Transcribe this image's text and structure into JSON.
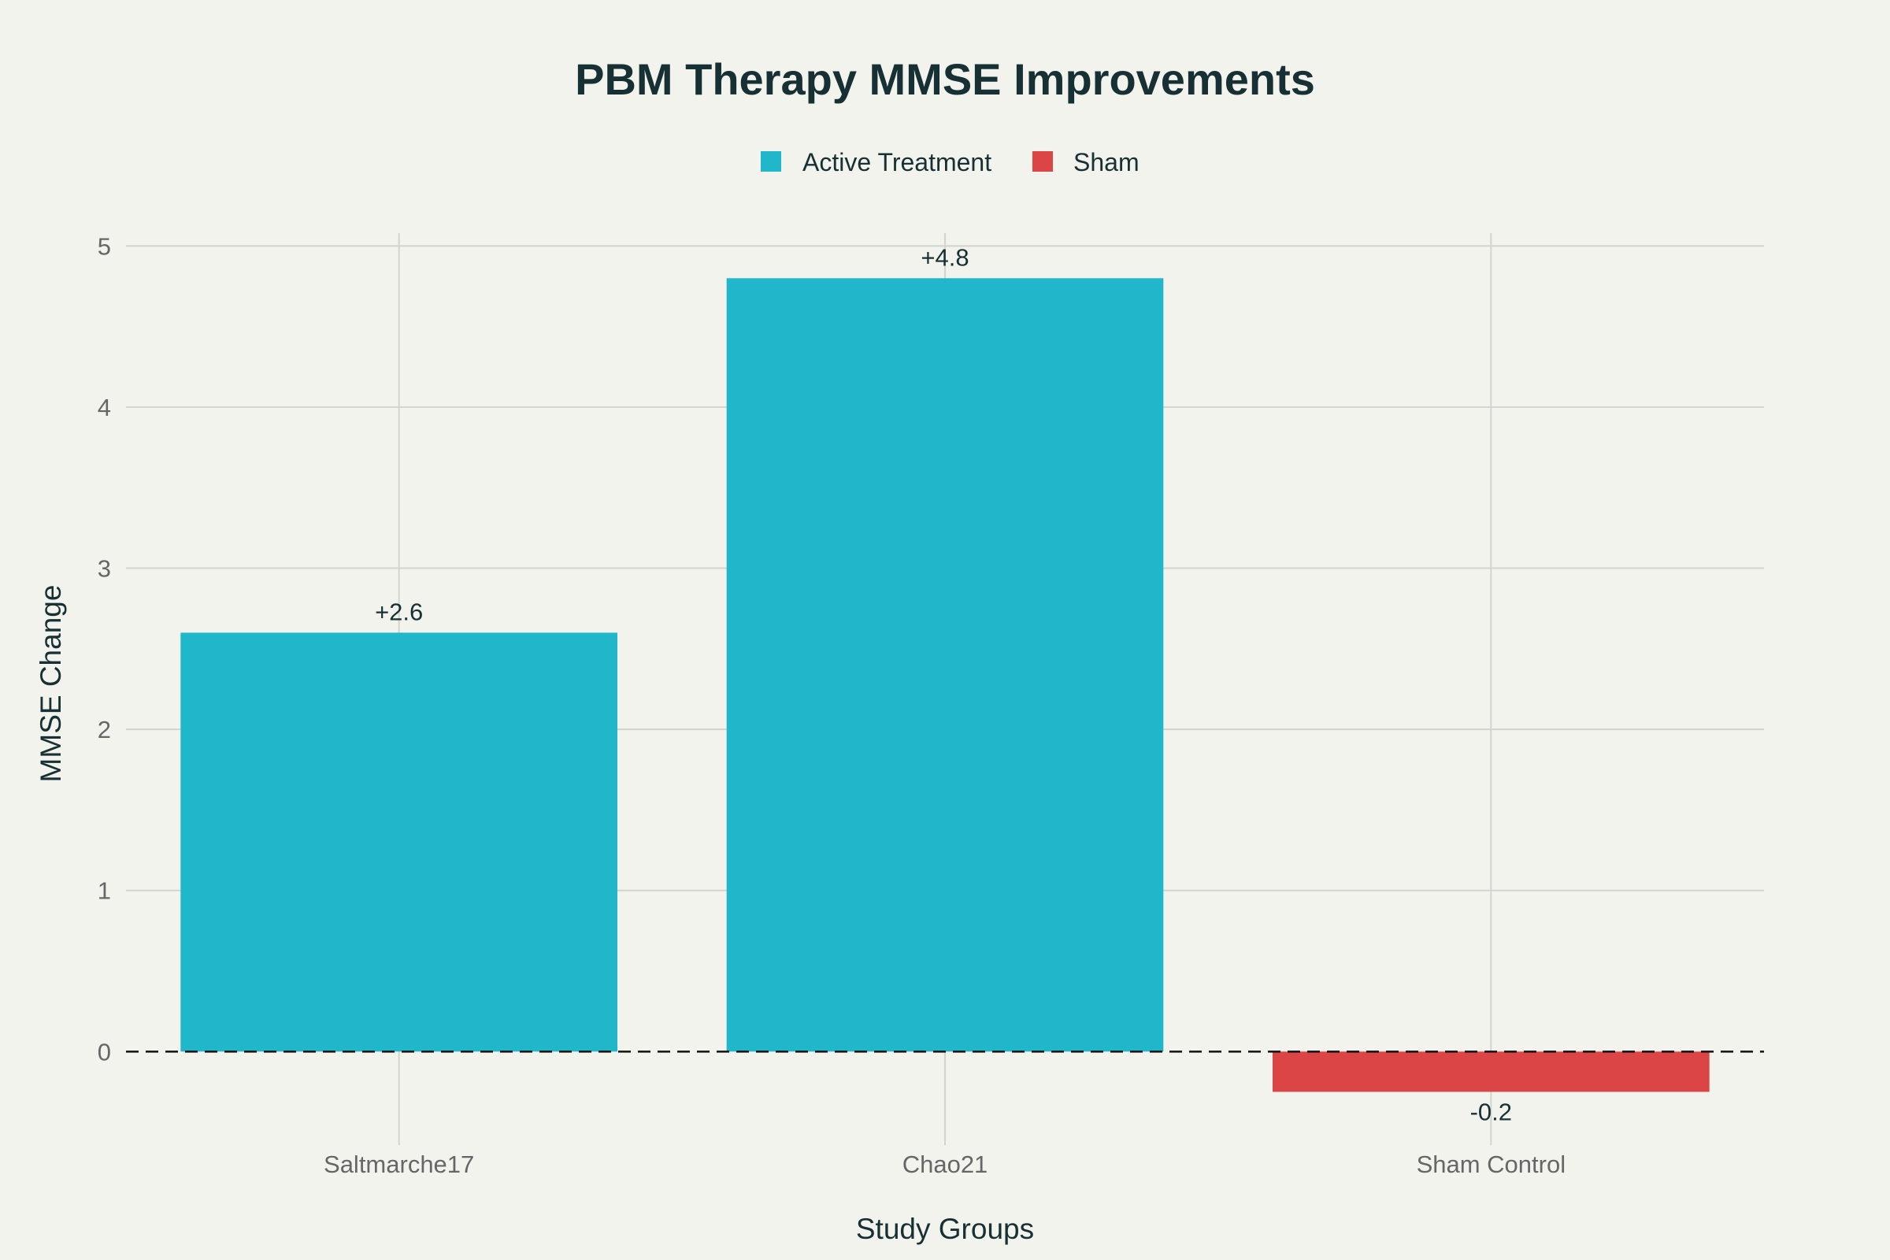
{
  "chart_data": {
    "type": "bar",
    "title": "PBM Therapy MMSE Improvements",
    "xlabel": "Study Groups",
    "ylabel": "MMSE Change",
    "categories": [
      "Saltmarche17",
      "Chao21",
      "Sham Control"
    ],
    "values": [
      2.6,
      4.8,
      -0.25
    ],
    "data_labels": [
      "+2.6",
      "+4.8",
      "-0.2"
    ],
    "bar_groups": [
      "Active Treatment",
      "Active Treatment",
      "Sham"
    ],
    "legend": [
      {
        "name": "Active Treatment",
        "color": "#21b7cb"
      },
      {
        "name": "Sham",
        "color": "#db4545"
      }
    ],
    "legend_position": "top-center",
    "ylim": [
      -0.58,
      5.08
    ],
    "yticks": [
      0,
      1,
      2,
      3,
      4,
      5
    ],
    "grid": true,
    "reference_line": {
      "y": 0,
      "style": "dashed",
      "color": "#111111"
    }
  }
}
